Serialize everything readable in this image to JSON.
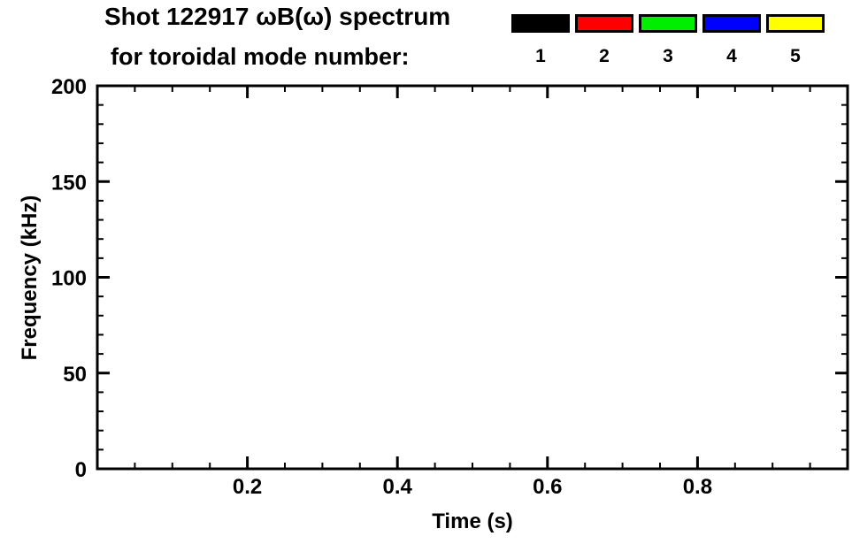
{
  "chart_data": {
    "type": "scatter",
    "title": "Shot 122917 ωB(ω) spectrum",
    "subtitle": "for toroidal mode number:",
    "xlabel": "Time (s)",
    "ylabel": "Frequency (kHz)",
    "xlim": [
      0.0,
      1.0
    ],
    "ylim": [
      0,
      200
    ],
    "xticks": [
      0.2,
      0.4,
      0.6,
      0.8
    ],
    "xtick_labels": [
      "0.2",
      "0.4",
      "0.6",
      "0.8"
    ],
    "x_minor_step": 0.05,
    "yticks": [
      0,
      50,
      100,
      150,
      200
    ],
    "ytick_labels": [
      "0",
      "50",
      "100",
      "150",
      "200"
    ],
    "y_minor_step": 10,
    "grid": false,
    "frame_color": "#000000",
    "legend_position": "top",
    "legend": {
      "entries": [
        {
          "label": "1",
          "color": "#000000"
        },
        {
          "label": "2",
          "color": "#ff0000"
        },
        {
          "label": "3",
          "color": "#00ee00"
        },
        {
          "label": "4",
          "color": "#0000ff"
        },
        {
          "label": "5",
          "color": "#ffff00"
        }
      ]
    },
    "series": []
  }
}
